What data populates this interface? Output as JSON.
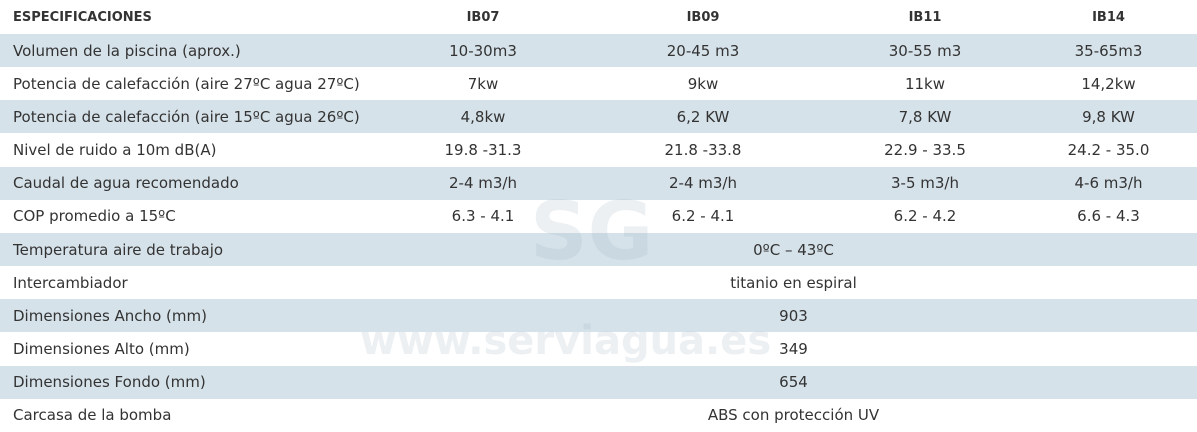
{
  "table": {
    "header": [
      "ESPECIFICACIONES",
      "IB07",
      "IB09",
      "IB11",
      "IB14"
    ],
    "rows": [
      [
        "Volumen de la piscina (aprox.)",
        "10-30m3",
        "20-45 m3",
        "30-55 m3",
        "35-65m3"
      ],
      [
        "Potencia de calefacción (aire 27ºC agua 27ºC)",
        "7kw",
        "9kw",
        "11kw",
        "14,2kw"
      ],
      [
        "Potencia de calefacción (aire 15ºC agua 26ºC)",
        "4,8kw",
        "6,2 KW",
        "7,8 KW",
        "9,8 KW"
      ],
      [
        "Nivel de ruido a 10m dB(A)",
        "19.8 -31.3",
        "21.8 -33.8",
        "22.9 - 33.5",
        "24.2 - 35.0"
      ],
      [
        "Caudal de agua recomendado",
        "2-4 m3/h",
        "2-4 m3/h",
        "3-5 m3/h",
        "4-6 m3/h"
      ],
      [
        "COP promedio a 15ºC",
        "6.3 - 4.1",
        "6.2 - 4.1",
        "6.2 - 4.2",
        "6.6 - 4.3"
      ],
      [
        "Temperatura aire de trabajo",
        "0ºC – 43ºC"
      ],
      [
        "Intercambiador",
        "titanio en espiral"
      ],
      [
        "Dimensiones Ancho (mm)",
        "903"
      ],
      [
        "Dimensiones Alto (mm)",
        "349"
      ],
      [
        "Dimensiones Fondo (mm)",
        "654"
      ],
      [
        "Carcasa de la bomba",
        "ABS con protección UV"
      ]
    ]
  },
  "watermark": {
    "logo": "SG",
    "site": "www.serviagua.es"
  }
}
